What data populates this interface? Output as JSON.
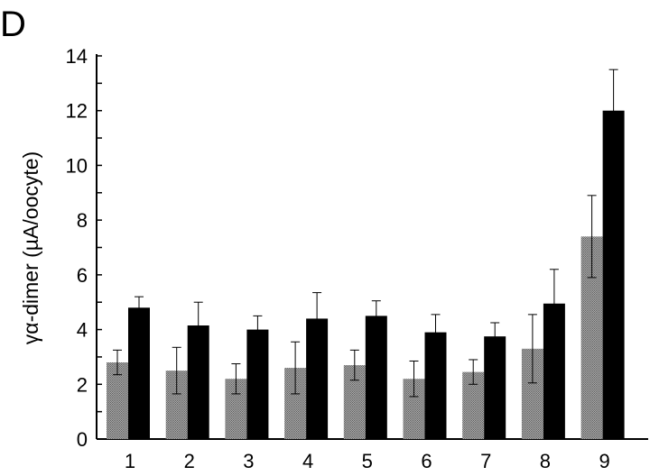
{
  "panel_label": "D",
  "chart_data": {
    "type": "bar",
    "title": "",
    "xlabel": "",
    "ylabel": "γα-dimer  (µA/oocyte)",
    "ylim": [
      0,
      14
    ],
    "yticks": [
      0,
      2,
      4,
      6,
      8,
      10,
      12,
      14
    ],
    "categories": [
      "1",
      "2",
      "3",
      "4",
      "5",
      "6",
      "7",
      "8",
      "9"
    ],
    "grid": false,
    "legend": "none",
    "series": [
      {
        "color": "#8a8a8a",
        "pattern": "stippled-gray",
        "values": [
          2.8,
          2.5,
          2.2,
          2.6,
          2.7,
          2.2,
          2.45,
          3.3,
          7.4
        ],
        "errors": [
          0.45,
          0.85,
          0.55,
          0.95,
          0.55,
          0.65,
          0.45,
          1.25,
          1.5
        ]
      },
      {
        "color": "#000000",
        "values": [
          4.8,
          4.15,
          4.0,
          4.4,
          4.5,
          3.9,
          3.75,
          4.95,
          12.0
        ],
        "errors": [
          0.4,
          0.85,
          0.5,
          0.95,
          0.55,
          0.65,
          0.5,
          1.25,
          1.5
        ]
      }
    ]
  }
}
